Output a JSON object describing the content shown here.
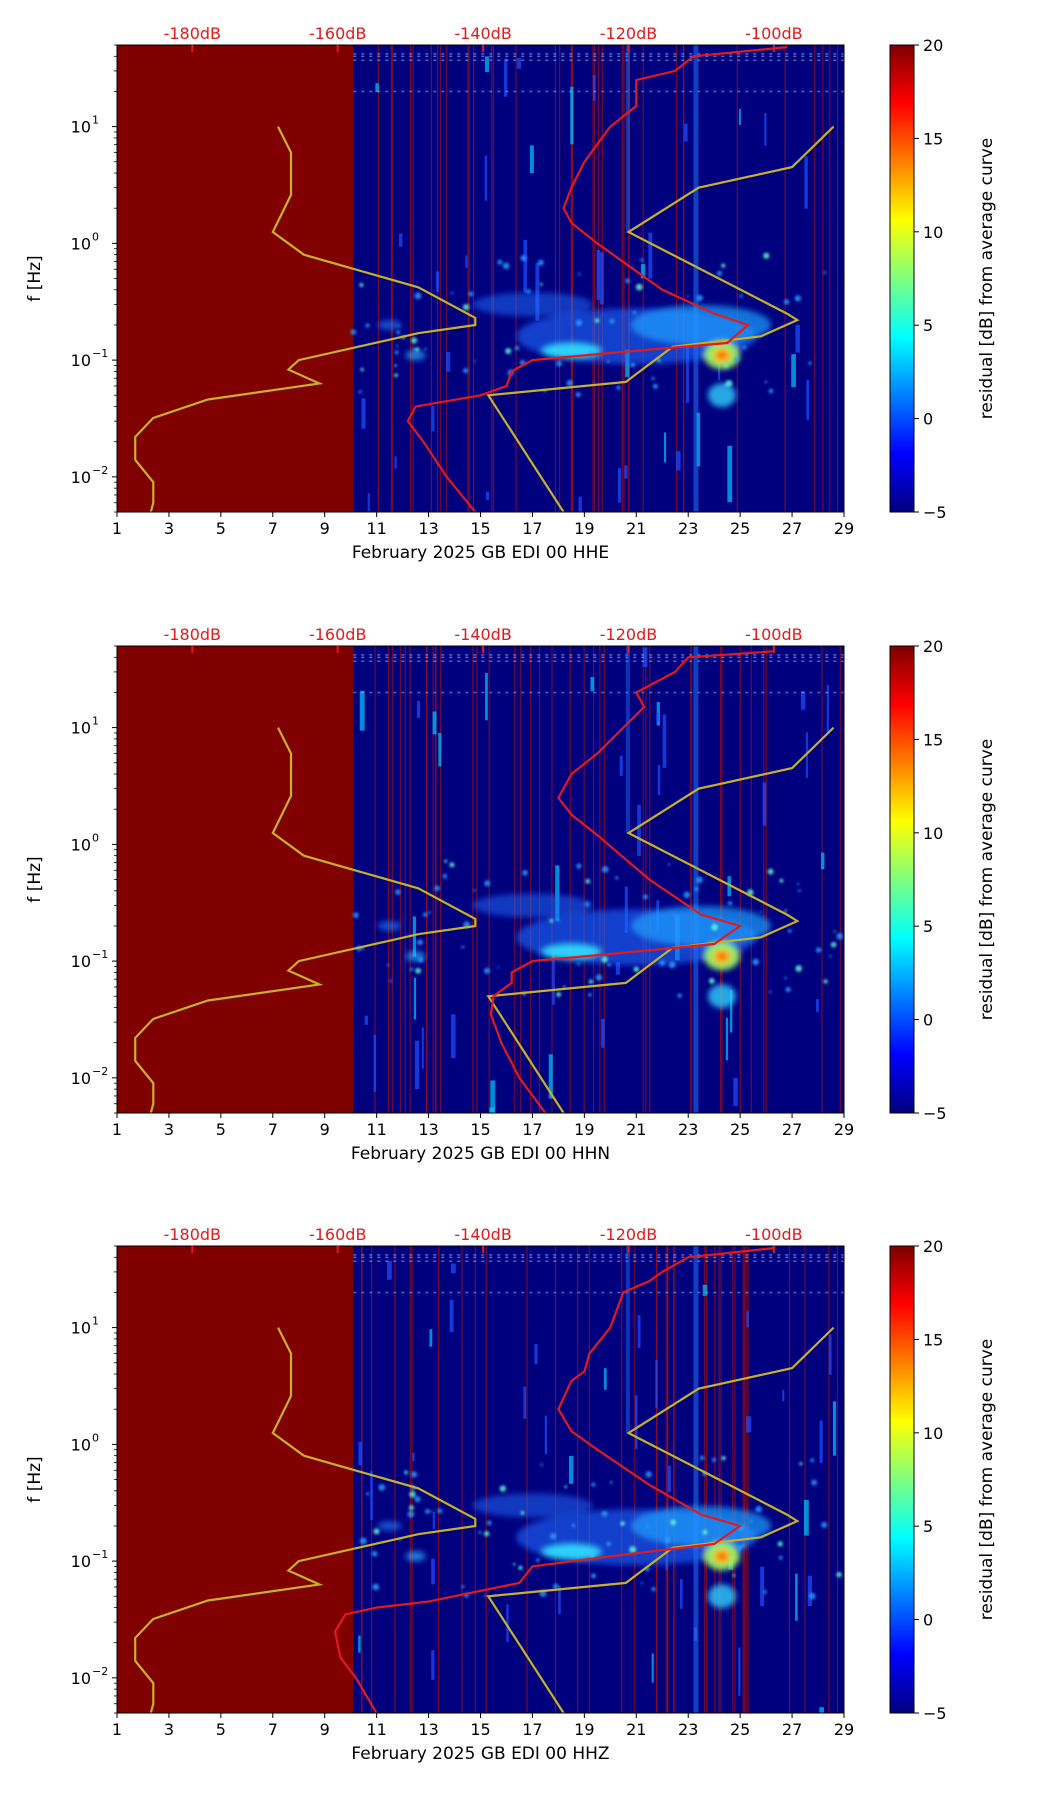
{
  "chart_data": [
    {
      "type": "heatmap",
      "xlabel": "February 2025 GB EDI 00 HHE",
      "ylabel": "f [Hz]",
      "x_range": [
        1,
        29
      ],
      "y_range_hz": [
        0.005,
        50
      ],
      "y_scale": "log",
      "x_ticks": [
        "1",
        "3",
        "5",
        "7",
        "9",
        "11",
        "13",
        "15",
        "17",
        "19",
        "21",
        "23",
        "25",
        "27",
        "29"
      ],
      "y_ticks": [
        {
          "base": "10",
          "exp": "1",
          "value": 10
        },
        {
          "base": "10",
          "exp": "0",
          "value": 1
        },
        {
          "base": "10",
          "exp": "−1",
          "value": 0.1
        },
        {
          "base": "10",
          "exp": "−2",
          "value": 0.01
        }
      ],
      "top_ticks": [
        {
          "label": "-180dB",
          "x": 3.9
        },
        {
          "label": "-160dB",
          "x": 9.5
        },
        {
          "label": "-140dB",
          "x": 15.1
        },
        {
          "label": "-120dB",
          "x": 20.7
        },
        {
          "label": "-100dB",
          "x": 26.3
        }
      ],
      "colorbar": {
        "label": "residual [dB] from average curve",
        "min": -5,
        "max": 20,
        "ticks": [
          "20",
          "15",
          "10",
          "5",
          "0",
          "−5"
        ],
        "colors": [
          "#00007f",
          "#0000ff",
          "#007fff",
          "#00ffff",
          "#7fff7f",
          "#ffff00",
          "#ff7f00",
          "#ff0000",
          "#7f0000"
        ]
      },
      "no_data_until_day": 10.1,
      "noise_model_curves": {
        "color": "#c8b12a",
        "low": [
          [
            2.3,
            0.005
          ],
          [
            2.4,
            0.006
          ],
          [
            2.4,
            0.009
          ],
          [
            1.7,
            0.014
          ],
          [
            1.7,
            0.022
          ],
          [
            2.4,
            0.032
          ],
          [
            4.5,
            0.046
          ],
          [
            8.8,
            0.063
          ],
          [
            7.6,
            0.083
          ],
          [
            8.0,
            0.1
          ],
          [
            12.6,
            0.17
          ],
          [
            14.8,
            0.2
          ],
          [
            14.8,
            0.23
          ],
          [
            12.6,
            0.42
          ],
          [
            8.2,
            0.8
          ],
          [
            7.0,
            1.25
          ],
          [
            7.7,
            2.6
          ],
          [
            7.7,
            6.0
          ],
          [
            7.2,
            10.0
          ]
        ],
        "high": [
          [
            18.2,
            0.005
          ],
          [
            15.3,
            0.05
          ],
          [
            20.6,
            0.065
          ],
          [
            22.4,
            0.13
          ],
          [
            25.8,
            0.16
          ],
          [
            27.2,
            0.22
          ],
          [
            26.8,
            0.25
          ],
          [
            20.7,
            1.25
          ],
          [
            23.4,
            3.0
          ],
          [
            27.0,
            4.5
          ],
          [
            28.6,
            10.0
          ]
        ]
      },
      "average_curve": {
        "color": "#e31a1c",
        "points": [
          [
            14.8,
            0.005
          ],
          [
            13.7,
            0.01
          ],
          [
            12.8,
            0.02
          ],
          [
            12.2,
            0.03
          ],
          [
            12.5,
            0.04
          ],
          [
            15.0,
            0.05
          ],
          [
            16.0,
            0.06
          ],
          [
            16.2,
            0.08
          ],
          [
            17.0,
            0.1
          ],
          [
            20.0,
            0.115
          ],
          [
            24.5,
            0.14
          ],
          [
            25.3,
            0.2
          ],
          [
            24.0,
            0.25
          ],
          [
            22.0,
            0.4
          ],
          [
            19.5,
            1.0
          ],
          [
            18.5,
            1.5
          ],
          [
            18.2,
            2.0
          ],
          [
            18.5,
            3.0
          ],
          [
            19.0,
            5.0
          ],
          [
            20.0,
            10.0
          ],
          [
            21.0,
            15.0
          ],
          [
            21.0,
            25.0
          ],
          [
            22.5,
            30.0
          ],
          [
            23.2,
            40.0
          ],
          [
            26.8,
            48.0
          ]
        ]
      }
    },
    {
      "type": "heatmap",
      "xlabel": "February 2025 GB EDI 00 HHN",
      "ylabel": "f [Hz]",
      "x_range": [
        1,
        29
      ],
      "y_range_hz": [
        0.005,
        50
      ],
      "y_scale": "log",
      "x_ticks": [
        "1",
        "3",
        "5",
        "7",
        "9",
        "11",
        "13",
        "15",
        "17",
        "19",
        "21",
        "23",
        "25",
        "27",
        "29"
      ],
      "y_ticks": [
        {
          "base": "10",
          "exp": "1",
          "value": 10
        },
        {
          "base": "10",
          "exp": "0",
          "value": 1
        },
        {
          "base": "10",
          "exp": "−1",
          "value": 0.1
        },
        {
          "base": "10",
          "exp": "−2",
          "value": 0.01
        }
      ],
      "top_ticks": [
        {
          "label": "-180dB",
          "x": 3.9
        },
        {
          "label": "-160dB",
          "x": 9.5
        },
        {
          "label": "-140dB",
          "x": 15.1
        },
        {
          "label": "-120dB",
          "x": 20.7
        },
        {
          "label": "-100dB",
          "x": 26.3
        }
      ],
      "colorbar": {
        "label": "residual [dB] from average curve",
        "min": -5,
        "max": 20,
        "ticks": [
          "20",
          "15",
          "10",
          "5",
          "0",
          "−5"
        ],
        "colors": [
          "#00007f",
          "#0000ff",
          "#007fff",
          "#00ffff",
          "#7fff7f",
          "#ffff00",
          "#ff7f00",
          "#ff0000",
          "#7f0000"
        ]
      },
      "no_data_until_day": 10.1,
      "noise_model_curves": {
        "color": "#c8b12a",
        "low": [
          [
            2.3,
            0.005
          ],
          [
            2.4,
            0.006
          ],
          [
            2.4,
            0.009
          ],
          [
            1.7,
            0.014
          ],
          [
            1.7,
            0.022
          ],
          [
            2.4,
            0.032
          ],
          [
            4.5,
            0.046
          ],
          [
            8.8,
            0.063
          ],
          [
            7.6,
            0.083
          ],
          [
            8.0,
            0.1
          ],
          [
            12.6,
            0.17
          ],
          [
            14.8,
            0.2
          ],
          [
            14.8,
            0.23
          ],
          [
            12.6,
            0.42
          ],
          [
            8.2,
            0.8
          ],
          [
            7.0,
            1.25
          ],
          [
            7.7,
            2.6
          ],
          [
            7.7,
            6.0
          ],
          [
            7.2,
            10.0
          ]
        ],
        "high": [
          [
            18.2,
            0.005
          ],
          [
            15.3,
            0.05
          ],
          [
            20.6,
            0.065
          ],
          [
            22.4,
            0.13
          ],
          [
            25.8,
            0.16
          ],
          [
            27.2,
            0.22
          ],
          [
            26.8,
            0.25
          ],
          [
            20.7,
            1.25
          ],
          [
            23.4,
            3.0
          ],
          [
            27.0,
            4.5
          ],
          [
            28.6,
            10.0
          ]
        ]
      },
      "average_curve": {
        "color": "#e31a1c",
        "points": [
          [
            17.5,
            0.005
          ],
          [
            16.5,
            0.01
          ],
          [
            15.8,
            0.02
          ],
          [
            15.4,
            0.035
          ],
          [
            15.5,
            0.05
          ],
          [
            16.2,
            0.065
          ],
          [
            16.2,
            0.08
          ],
          [
            17.0,
            0.1
          ],
          [
            20.0,
            0.115
          ],
          [
            24.0,
            0.14
          ],
          [
            25.0,
            0.2
          ],
          [
            23.5,
            0.25
          ],
          [
            21.5,
            0.5
          ],
          [
            19.5,
            1.2
          ],
          [
            18.5,
            1.8
          ],
          [
            18.0,
            2.5
          ],
          [
            18.5,
            4.0
          ],
          [
            19.5,
            6.0
          ],
          [
            20.5,
            10.0
          ],
          [
            21.3,
            15.0
          ],
          [
            21.0,
            20.0
          ],
          [
            22.5,
            30.0
          ],
          [
            23.0,
            40.0
          ],
          [
            26.3,
            45.0
          ]
        ]
      }
    },
    {
      "type": "heatmap",
      "xlabel": "February 2025 GB EDI 00 HHZ",
      "ylabel": "f [Hz]",
      "x_range": [
        1,
        29
      ],
      "y_range_hz": [
        0.005,
        50
      ],
      "y_scale": "log",
      "x_ticks": [
        "1",
        "3",
        "5",
        "7",
        "9",
        "11",
        "13",
        "15",
        "17",
        "19",
        "21",
        "23",
        "25",
        "27",
        "29"
      ],
      "y_ticks": [
        {
          "base": "10",
          "exp": "1",
          "value": 10
        },
        {
          "base": "10",
          "exp": "0",
          "value": 1
        },
        {
          "base": "10",
          "exp": "−1",
          "value": 0.1
        },
        {
          "base": "10",
          "exp": "−2",
          "value": 0.01
        }
      ],
      "top_ticks": [
        {
          "label": "-180dB",
          "x": 3.9
        },
        {
          "label": "-160dB",
          "x": 9.5
        },
        {
          "label": "-140dB",
          "x": 15.1
        },
        {
          "label": "-120dB",
          "x": 20.7
        },
        {
          "label": "-100dB",
          "x": 26.3
        }
      ],
      "colorbar": {
        "label": "residual [dB] from average curve",
        "min": -5,
        "max": 20,
        "ticks": [
          "20",
          "15",
          "10",
          "5",
          "0",
          "−5"
        ],
        "colors": [
          "#00007f",
          "#0000ff",
          "#007fff",
          "#00ffff",
          "#7fff7f",
          "#ffff00",
          "#ff7f00",
          "#ff0000",
          "#7f0000"
        ]
      },
      "no_data_until_day": 10.1,
      "noise_model_curves": {
        "color": "#c8b12a",
        "low": [
          [
            2.3,
            0.005
          ],
          [
            2.4,
            0.006
          ],
          [
            2.4,
            0.009
          ],
          [
            1.7,
            0.014
          ],
          [
            1.7,
            0.022
          ],
          [
            2.4,
            0.032
          ],
          [
            4.5,
            0.046
          ],
          [
            8.8,
            0.063
          ],
          [
            7.6,
            0.083
          ],
          [
            8.0,
            0.1
          ],
          [
            12.6,
            0.17
          ],
          [
            14.8,
            0.2
          ],
          [
            14.8,
            0.23
          ],
          [
            12.6,
            0.42
          ],
          [
            8.2,
            0.8
          ],
          [
            7.0,
            1.25
          ],
          [
            7.7,
            2.6
          ],
          [
            7.7,
            6.0
          ],
          [
            7.2,
            10.0
          ]
        ],
        "high": [
          [
            18.2,
            0.005
          ],
          [
            15.3,
            0.05
          ],
          [
            20.6,
            0.065
          ],
          [
            22.4,
            0.13
          ],
          [
            25.8,
            0.16
          ],
          [
            27.2,
            0.22
          ],
          [
            26.8,
            0.25
          ],
          [
            20.7,
            1.25
          ],
          [
            23.4,
            3.0
          ],
          [
            27.0,
            4.5
          ],
          [
            28.6,
            10.0
          ]
        ]
      },
      "average_curve": {
        "color": "#e31a1c",
        "points": [
          [
            11.0,
            0.005
          ],
          [
            10.2,
            0.01
          ],
          [
            9.6,
            0.015
          ],
          [
            9.4,
            0.025
          ],
          [
            9.8,
            0.035
          ],
          [
            11.0,
            0.04
          ],
          [
            13.0,
            0.045
          ],
          [
            16.5,
            0.065
          ],
          [
            17.0,
            0.09
          ],
          [
            20.0,
            0.11
          ],
          [
            24.0,
            0.14
          ],
          [
            25.0,
            0.2
          ],
          [
            23.5,
            0.25
          ],
          [
            21.5,
            0.45
          ],
          [
            19.5,
            0.9
          ],
          [
            18.5,
            1.3
          ],
          [
            18.0,
            2.0
          ],
          [
            18.5,
            3.5
          ],
          [
            19.0,
            4.2
          ],
          [
            19.2,
            6.0
          ],
          [
            20.0,
            10.0
          ],
          [
            20.5,
            20.0
          ],
          [
            21.5,
            25.0
          ],
          [
            22.0,
            30.0
          ],
          [
            23.0,
            40.0
          ],
          [
            26.3,
            48.0
          ]
        ]
      }
    }
  ]
}
